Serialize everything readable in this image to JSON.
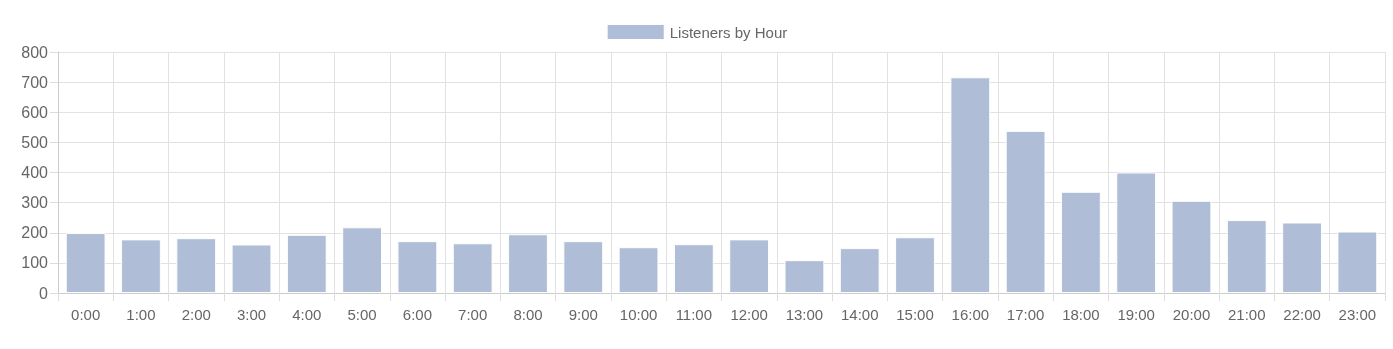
{
  "chart_data": {
    "type": "bar",
    "categories": [
      "0:00",
      "1:00",
      "2:00",
      "3:00",
      "4:00",
      "5:00",
      "6:00",
      "7:00",
      "8:00",
      "9:00",
      "10:00",
      "11:00",
      "12:00",
      "13:00",
      "14:00",
      "15:00",
      "16:00",
      "17:00",
      "18:00",
      "19:00",
      "20:00",
      "21:00",
      "22:00",
      "23:00"
    ],
    "series": [
      {
        "name": "Listeners by Hour",
        "color": "#abbad4",
        "values": [
          199,
          178,
          182,
          161,
          193,
          218,
          172,
          165,
          195,
          172,
          152,
          162,
          178,
          109,
          149,
          185,
          716,
          538,
          336,
          400,
          306,
          242,
          234,
          204
        ]
      }
    ],
    "ylim": [
      0,
      800
    ],
    "yticks": [
      0,
      100,
      200,
      300,
      400,
      500,
      600,
      700,
      800
    ],
    "grid": true,
    "legend": "top"
  }
}
